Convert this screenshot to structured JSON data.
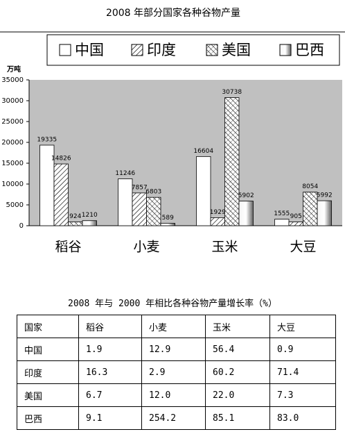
{
  "chart_data": {
    "type": "bar",
    "title": "2008 年部分国家各种谷物产量",
    "y_label": "万吨",
    "categories": [
      "稻谷",
      "小麦",
      "玉米",
      "大豆"
    ],
    "series": [
      {
        "name": "中国",
        "pattern": "blank",
        "values": [
          19335,
          11246,
          16604,
          1555
        ]
      },
      {
        "name": "印度",
        "pattern": "forward-hatch",
        "values": [
          14826,
          7857,
          1929,
          905
        ]
      },
      {
        "name": "美国",
        "pattern": "cross-hatch",
        "values": [
          924,
          6803,
          30738,
          8054
        ]
      },
      {
        "name": "巴西",
        "pattern": "gradient",
        "values": [
          1210,
          589,
          5902,
          5992
        ]
      }
    ],
    "ylim": [
      0,
      35000
    ],
    "yticks": [
      0,
      5000,
      10000,
      15000,
      20000,
      25000,
      30000,
      35000
    ],
    "grid": false
  },
  "table": {
    "title": "2008 年与 2000 年相比各种谷物产量增长率（%）",
    "header": [
      "国家",
      "稻谷",
      "小麦",
      "玉米",
      "大豆"
    ],
    "rows": [
      [
        "中国",
        "1.9",
        "12.9",
        "56.4",
        "0.9"
      ],
      [
        "印度",
        "16.3",
        "2.9",
        "60.2",
        "71.4"
      ],
      [
        "美国",
        "6.7",
        "12.0",
        "22.0",
        "7.3"
      ],
      [
        "巴西",
        "9.1",
        "254.2",
        "85.1",
        "83.0"
      ]
    ]
  }
}
